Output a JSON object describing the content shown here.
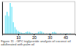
{
  "chart_data": {
    "type": "bar",
    "title": "Figure 11 - GPC triglyceride analysis of coconut oil adulterated with palm oil",
    "x": [
      2,
      3,
      4,
      5,
      6,
      7,
      8,
      9,
      10,
      11,
      12,
      13,
      14,
      15,
      16,
      17,
      18,
      19,
      21,
      22,
      23,
      24,
      25,
      26,
      28,
      30,
      32,
      33,
      34,
      37,
      39,
      41,
      43
    ],
    "values": [
      0.6,
      0.72,
      0.58,
      1.0,
      0.88,
      0.38,
      0.22,
      0.14,
      0.09,
      0.06,
      0.04,
      0.03,
      0.025,
      0.055,
      0.075,
      0.065,
      0.04,
      0.025,
      0.02,
      0.025,
      0.065,
      0.085,
      0.07,
      0.04,
      0.015,
      0.02,
      0.055,
      0.065,
      0.04,
      0.018,
      0.015,
      0.022,
      0.018
    ],
    "color": "#7ee8f8",
    "xlim": [
      0,
      46
    ],
    "xticks": [
      10,
      20,
      30,
      40
    ],
    "ylim": [
      0,
      1.05
    ],
    "tick_labels": "x"
  }
}
